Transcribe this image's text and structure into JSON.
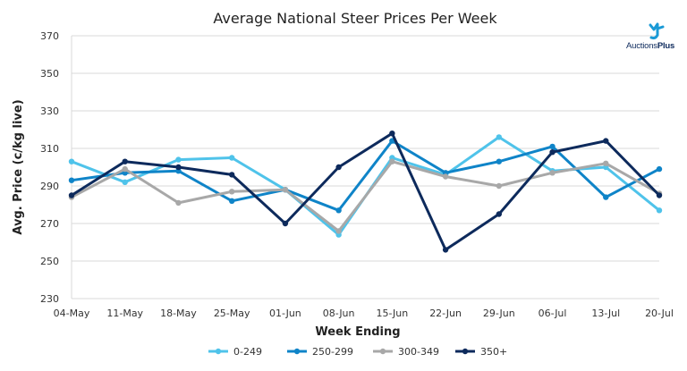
{
  "chart_data": {
    "type": "line",
    "title": "Average National Steer Prices Per Week",
    "xlabel": "Week Ending",
    "ylabel": "Avg. Price (c/kg live)",
    "categories": [
      "04-May",
      "11-May",
      "18-May",
      "25-May",
      "01-Jun",
      "08-Jun",
      "15-Jun",
      "22-Jun",
      "29-Jun",
      "06-Jul",
      "13-Jul",
      "20-Jul"
    ],
    "ylim": [
      230,
      370
    ],
    "yticks": [
      230,
      250,
      270,
      290,
      310,
      330,
      350,
      370
    ],
    "grid": "horizontal",
    "legend_position": "bottom",
    "series": [
      {
        "name": "0-249",
        "color": "#4fc3ea",
        "values": [
          303,
          292,
          304,
          305,
          288,
          264,
          305,
          296,
          316,
          298,
          300,
          277
        ]
      },
      {
        "name": "250-299",
        "color": "#0f84c8",
        "values": [
          293,
          297,
          298,
          282,
          288,
          277,
          314,
          297,
          303,
          311,
          284,
          299
        ]
      },
      {
        "name": "300-349",
        "color": "#a8a8a8",
        "values": [
          284,
          299,
          281,
          287,
          288,
          266,
          303,
          295,
          290,
          297,
          302,
          286
        ]
      },
      {
        "name": "350+",
        "color": "#0d2a5c",
        "values": [
          285,
          303,
          300,
          296,
          270,
          300,
          318,
          256,
          275,
          308,
          314,
          285
        ]
      }
    ]
  },
  "logo": {
    "text_a": "Auctions",
    "text_b": "Plus"
  }
}
